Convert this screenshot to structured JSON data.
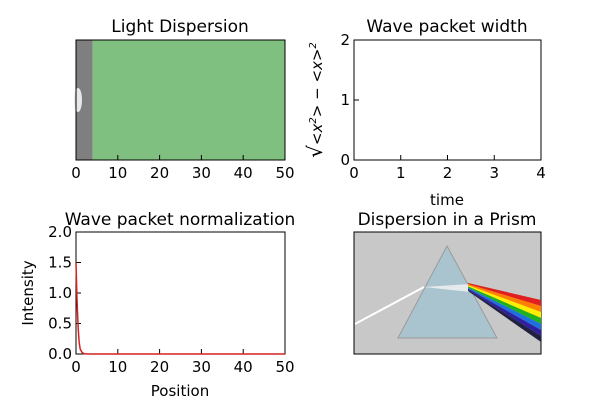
{
  "chart_data": [
    {
      "id": "light-dispersion",
      "type": "heatmap",
      "title": "Light Dispersion",
      "xlim": [
        0,
        50
      ],
      "xticks": [
        0,
        10,
        20,
        30,
        40,
        50
      ],
      "regions": [
        {
          "x_start": 0,
          "x_end": 4,
          "color": "#7f7f7f"
        },
        {
          "x_start": 4,
          "x_end": 50,
          "color": "#7fbf7f"
        }
      ],
      "grid": false
    },
    {
      "id": "wave-packet-width",
      "type": "line",
      "title": "Wave packet width",
      "xlabel": "time",
      "ylabel": "√<x²> − <x>²",
      "ylabel_parts": {
        "sqrt": "√",
        "x2": "<x",
        "sq": "2",
        "gt": "> − <x>",
        "sq2": "2"
      },
      "xlim": [
        0,
        4
      ],
      "ylim": [
        0,
        2
      ],
      "xticks": [
        0,
        1,
        2,
        3,
        4
      ],
      "yticks": [
        0,
        1,
        2
      ],
      "series": [],
      "grid": false
    },
    {
      "id": "wave-packet-normalization",
      "type": "line",
      "title": "Wave packet normalization",
      "xlabel": "Position",
      "ylabel": "Intensity",
      "xlim": [
        0,
        50
      ],
      "ylim": [
        0,
        2.0
      ],
      "xticks": [
        0,
        10,
        20,
        30,
        40,
        50
      ],
      "yticks": [
        "0.0",
        "0.5",
        "1.0",
        "1.5",
        "2.0"
      ],
      "series": [
        {
          "color": "#d62020",
          "x": [
            0,
            0.25,
            0.5,
            0.75,
            1.0,
            1.5,
            2.0,
            3.0,
            5.0,
            10,
            20,
            30,
            40,
            50
          ],
          "y": [
            1.5,
            0.9,
            0.45,
            0.2,
            0.08,
            0.02,
            0.005,
            0.0,
            0.0,
            0.0,
            0.0,
            0.0,
            0.0,
            0.0
          ]
        }
      ],
      "grid": false
    },
    {
      "id": "dispersion-in-prism",
      "type": "image",
      "title": "Dispersion in a Prism",
      "background": "#c8c8c8",
      "prism_color": "#a9c4cf",
      "spectrum_colors": [
        "#e02020",
        "#ff7f00",
        "#ffee00",
        "#20b020",
        "#1e6fe0",
        "#3020a0",
        "#202040"
      ]
    }
  ]
}
